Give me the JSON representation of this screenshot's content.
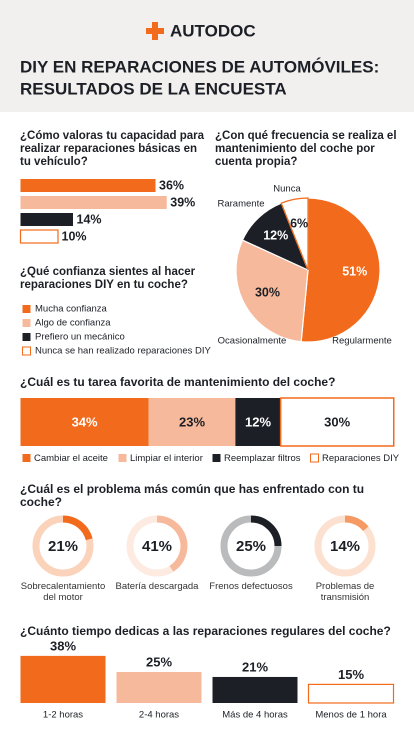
{
  "header": {
    "brand": "AUTODOC",
    "title": [
      "DIY EN REPARACIONES DE AUTOMÓVILES:",
      "RESULTADOS DE LA ENCUESTA"
    ]
  },
  "chart_data": [
    {
      "type": "hbar",
      "title": "¿Cómo valoras tu capacidad para realizar reparaciones básicas en tu vehículo?",
      "legend_title": "¿Qué confianza sientes al hacer reparaciones DIY en tu coche?",
      "categories": [
        "Mucha confianza",
        "Algo de confianza",
        "Prefiero un mecánico",
        "Nunca se han realizado reparaciones DIY"
      ],
      "values": [
        36,
        39,
        14,
        10
      ],
      "value_labels": [
        "36%",
        "39%",
        "14%",
        "10%"
      ],
      "colors": [
        "#f26a1b",
        "#f7b99b",
        "#1c1f26",
        "#ffffff"
      ]
    },
    {
      "type": "pie",
      "title": "¿Con qué frecuencia se realiza el mantenimiento del coche por cuenta propia?",
      "categories": [
        "Regularmente",
        "Ocasionalmente",
        "Raramente",
        "Nunca"
      ],
      "values": [
        51,
        30,
        12,
        6
      ],
      "value_labels": [
        "51%",
        "30%",
        "12%",
        "6%"
      ],
      "colors": [
        "#f26a1b",
        "#f7b99b",
        "#1c1f26",
        "#ffffff"
      ]
    },
    {
      "type": "stacked",
      "title": "¿Cuál es tu tarea favorita de mantenimiento del coche?",
      "categories": [
        "Cambiar el aceite",
        "Limpiar el interior",
        "Reemplazar filtros",
        "Reparaciones DIY"
      ],
      "values": [
        34,
        23,
        12,
        30
      ],
      "value_labels": [
        "34%",
        "23%",
        "12%",
        "30%"
      ],
      "colors": [
        "#f26a1b",
        "#f7b99b",
        "#1c1f26",
        "#ffffff"
      ]
    },
    {
      "type": "donut",
      "title": "¿Cuál es el problema más común que has enfrentado con tu coche?",
      "categories": [
        "Sobrecalentamiento del motor",
        "Batería descargada",
        "Frenos defectuosos",
        "Problemas de transmisión"
      ],
      "values": [
        21,
        41,
        25,
        14
      ],
      "value_labels": [
        "21%",
        "41%",
        "25%",
        "14%"
      ],
      "colors": [
        "#f26a1b",
        "#f7b99b",
        "#1c1f26",
        "#f59a63"
      ]
    },
    {
      "type": "column",
      "title": "¿Cuánto tiempo dedicas a las reparaciones regulares del coche?",
      "categories": [
        "1-2 horas",
        "2-4 horas",
        "Más de 4 horas",
        "Menos de 1 hora"
      ],
      "values": [
        38,
        25,
        21,
        15
      ],
      "value_labels": [
        "38%",
        "25%",
        "21%",
        "15%"
      ],
      "colors": [
        "#f26a1b",
        "#f7b99b",
        "#1c1f26",
        "#ffffff"
      ]
    }
  ]
}
